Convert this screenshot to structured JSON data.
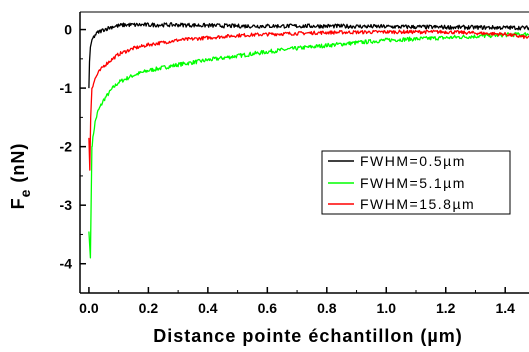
{
  "chart_data": {
    "type": "line",
    "xlabel": "Distance pointe échantillon (µm)",
    "ylabel_main": "F",
    "ylabel_sub": "e",
    "ylabel_unit": " (nN)",
    "xlim": [
      -0.03,
      1.48
    ],
    "ylim": [
      -4.5,
      0.3
    ],
    "x_ticks": [
      0.0,
      0.2,
      0.4,
      0.6,
      0.8,
      1.0,
      1.2,
      1.4
    ],
    "x_tick_labels": [
      "0.0",
      "0.2",
      "0.4",
      "0.6",
      "0.8",
      "1.0",
      "1.2",
      "1.4"
    ],
    "y_ticks": [
      0,
      -1,
      -2,
      -3,
      -4
    ],
    "y_tick_labels": [
      "0",
      "-1",
      "-2",
      "-3",
      "-4"
    ],
    "legend_position": "right-middle",
    "series": [
      {
        "name": "FWHM=0.5µm",
        "color": "#000000",
        "x": [
          0.0,
          0.002,
          0.005,
          0.01,
          0.02,
          0.03,
          0.05,
          0.08,
          0.12,
          0.2,
          0.3,
          0.5,
          0.8,
          1.0,
          1.2,
          1.48
        ],
        "y": [
          -1.0,
          -0.55,
          -0.3,
          -0.18,
          -0.1,
          -0.05,
          0.0,
          0.05,
          0.08,
          0.08,
          0.08,
          0.06,
          0.06,
          0.05,
          0.04,
          0.03
        ]
      },
      {
        "name": "FWHM=5.1µm",
        "color": "#00ff00",
        "x": [
          0.0,
          0.005,
          0.01,
          0.02,
          0.03,
          0.05,
          0.08,
          0.1,
          0.15,
          0.2,
          0.3,
          0.4,
          0.5,
          0.6,
          0.7,
          0.8,
          1.0,
          1.2,
          1.4,
          1.48
        ],
        "y": [
          -3.45,
          -3.9,
          -2.0,
          -1.6,
          -1.4,
          -1.2,
          -1.0,
          -0.9,
          -0.78,
          -0.7,
          -0.6,
          -0.52,
          -0.45,
          -0.38,
          -0.32,
          -0.27,
          -0.18,
          -0.14,
          -0.09,
          -0.08
        ]
      },
      {
        "name": "FWHM=15.8µm",
        "color": "#ff0000",
        "x": [
          0.0,
          0.003,
          0.006,
          0.01,
          0.02,
          0.03,
          0.05,
          0.08,
          0.1,
          0.15,
          0.2,
          0.3,
          0.4,
          0.5,
          0.6,
          0.8,
          1.0,
          1.2,
          1.4,
          1.48
        ],
        "y": [
          -1.85,
          -2.4,
          -1.5,
          -1.0,
          -0.85,
          -0.75,
          -0.62,
          -0.5,
          -0.42,
          -0.32,
          -0.26,
          -0.18,
          -0.14,
          -0.1,
          -0.08,
          -0.05,
          -0.04,
          -0.04,
          -0.08,
          -0.14
        ]
      }
    ]
  }
}
